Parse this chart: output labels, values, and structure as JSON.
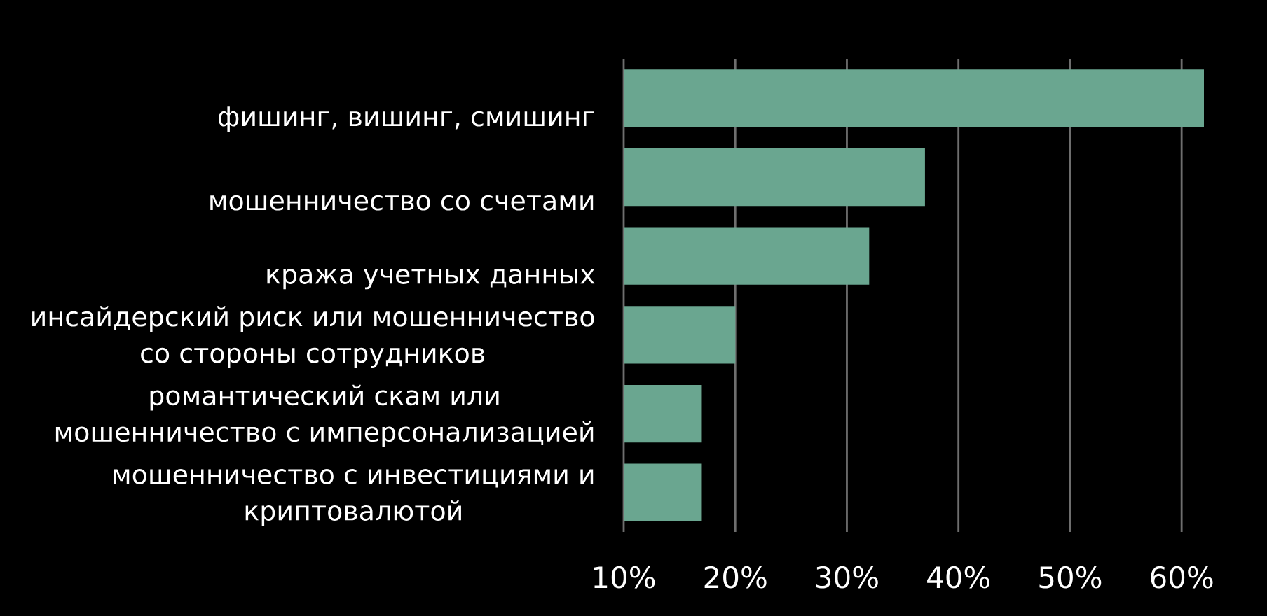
{
  "chart_data": {
    "type": "bar",
    "orientation": "horizontal",
    "categories": [
      "фишинг, вишинг, смишинг",
      "мошенничество со счетами",
      "кража учетных данных",
      "инсайдерский риск или мошенничество со стороны сотрудников",
      "романтический скам или мошенничество с имперсонализацией",
      "мошенничество с инвестициями и криптовалютой"
    ],
    "values": [
      62,
      37,
      32,
      20,
      17,
      17
    ],
    "color": "#6aa690",
    "xlim": [
      10,
      62
    ],
    "xticks": [
      {
        "value": 10,
        "label": "10%"
      },
      {
        "value": 20,
        "label": "20%"
      },
      {
        "value": 30,
        "label": "30%"
      },
      {
        "value": 40,
        "label": "40%"
      },
      {
        "value": 50,
        "label": "50%"
      },
      {
        "value": 60,
        "label": "60%"
      }
    ],
    "grid": "x"
  }
}
